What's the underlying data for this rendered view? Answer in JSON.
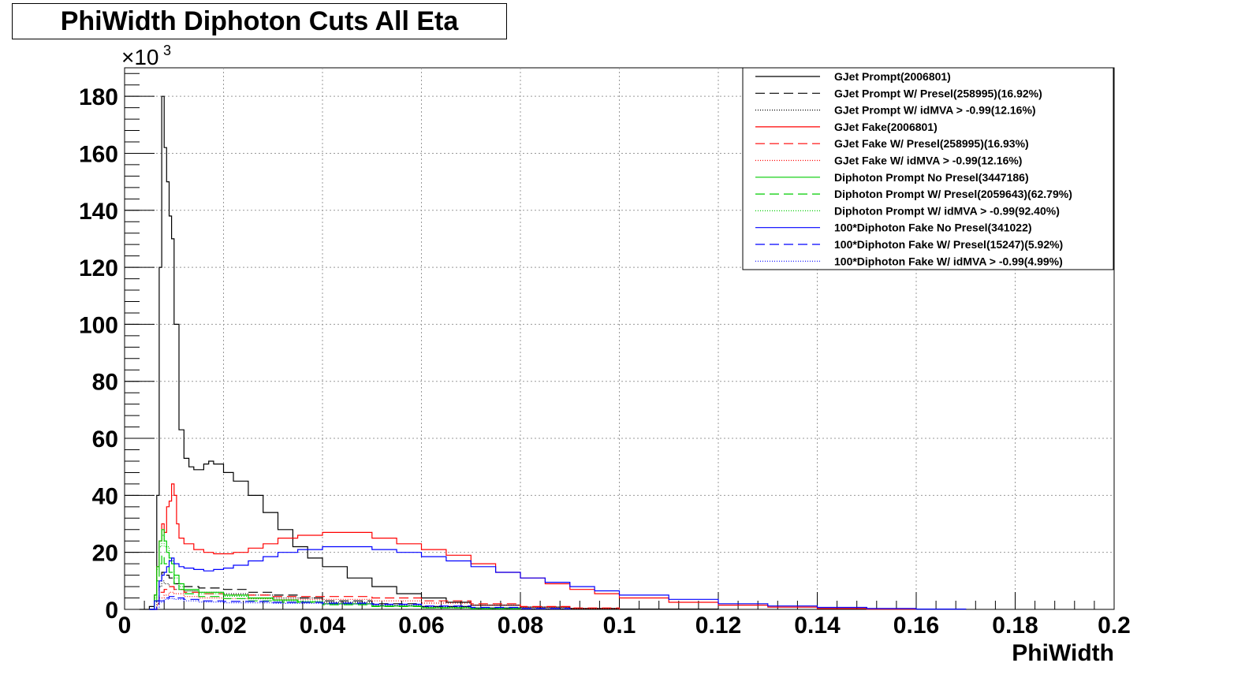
{
  "title": "PhiWidth Diphoton Cuts All Eta",
  "chart_data": {
    "type": "line",
    "subtype": "step-histogram",
    "xlabel": "PhiWidth",
    "ylabel": "",
    "y_scale_label": "×10",
    "y_scale_exponent": "3",
    "xlim": [
      0,
      0.2
    ],
    "ylim": [
      0,
      190
    ],
    "x_ticks": [
      "0",
      "0.02",
      "0.04",
      "0.06",
      "0.08",
      "0.1",
      "0.12",
      "0.14",
      "0.16",
      "0.18",
      "0.2"
    ],
    "y_ticks": [
      "0",
      "20",
      "40",
      "60",
      "80",
      "100",
      "120",
      "140",
      "160",
      "180"
    ],
    "grid": true,
    "legend_position": "top-right",
    "series": [
      {
        "name": "GJet Prompt(2006801)",
        "color": "#000000",
        "dash": "solid",
        "points": [
          [
            0.003,
            0
          ],
          [
            0.005,
            1
          ],
          [
            0.006,
            5
          ],
          [
            0.0065,
            40
          ],
          [
            0.007,
            120
          ],
          [
            0.0075,
            180
          ],
          [
            0.008,
            162
          ],
          [
            0.0085,
            150
          ],
          [
            0.009,
            138
          ],
          [
            0.0095,
            130
          ],
          [
            0.01,
            100
          ],
          [
            0.011,
            63
          ],
          [
            0.012,
            53
          ],
          [
            0.013,
            50
          ],
          [
            0.014,
            49
          ],
          [
            0.016,
            51
          ],
          [
            0.017,
            52
          ],
          [
            0.018,
            51
          ],
          [
            0.02,
            48
          ],
          [
            0.022,
            45
          ],
          [
            0.025,
            40
          ],
          [
            0.028,
            34
          ],
          [
            0.031,
            28
          ],
          [
            0.034,
            22
          ],
          [
            0.037,
            18
          ],
          [
            0.04,
            15
          ],
          [
            0.045,
            11
          ],
          [
            0.05,
            8
          ],
          [
            0.055,
            5.5
          ],
          [
            0.06,
            4
          ],
          [
            0.065,
            2.5
          ],
          [
            0.07,
            1.5
          ],
          [
            0.08,
            0.8
          ],
          [
            0.09,
            0.3
          ],
          [
            0.1,
            0.1
          ],
          [
            0.12,
            0
          ]
        ]
      },
      {
        "name": "GJet Prompt W/ Presel(258995)(16.92%)",
        "color": "#000000",
        "dash": "dashed",
        "points": [
          [
            0.005,
            0
          ],
          [
            0.0065,
            3
          ],
          [
            0.007,
            10
          ],
          [
            0.0075,
            13
          ],
          [
            0.008,
            12
          ],
          [
            0.009,
            11
          ],
          [
            0.01,
            9
          ],
          [
            0.012,
            8
          ],
          [
            0.015,
            7.5
          ],
          [
            0.02,
            7
          ],
          [
            0.025,
            6
          ],
          [
            0.03,
            5
          ],
          [
            0.035,
            4
          ],
          [
            0.04,
            3
          ],
          [
            0.05,
            2
          ],
          [
            0.06,
            1
          ],
          [
            0.07,
            0.5
          ],
          [
            0.08,
            0.2
          ],
          [
            0.09,
            0
          ]
        ]
      },
      {
        "name": "GJet Prompt W/ idMVA > -0.99(12.16%)",
        "color": "#000000",
        "dash": "dotted",
        "points": [
          [
            0.005,
            0
          ],
          [
            0.0065,
            2
          ],
          [
            0.007,
            8
          ],
          [
            0.0075,
            10
          ],
          [
            0.008,
            9
          ],
          [
            0.009,
            8
          ],
          [
            0.01,
            7
          ],
          [
            0.012,
            6.5
          ],
          [
            0.015,
            6
          ],
          [
            0.02,
            5.5
          ],
          [
            0.025,
            5
          ],
          [
            0.03,
            4
          ],
          [
            0.04,
            2.5
          ],
          [
            0.05,
            1.5
          ],
          [
            0.06,
            0.8
          ],
          [
            0.07,
            0.3
          ],
          [
            0.08,
            0
          ]
        ]
      },
      {
        "name": "GJet Fake(2006801)",
        "color": "#ff0000",
        "dash": "solid",
        "points": [
          [
            0.005,
            0
          ],
          [
            0.006,
            5
          ],
          [
            0.0065,
            15
          ],
          [
            0.007,
            24
          ],
          [
            0.0075,
            30
          ],
          [
            0.008,
            27
          ],
          [
            0.0085,
            36
          ],
          [
            0.009,
            38
          ],
          [
            0.0095,
            44
          ],
          [
            0.01,
            40
          ],
          [
            0.0105,
            30
          ],
          [
            0.011,
            25
          ],
          [
            0.012,
            23
          ],
          [
            0.014,
            21
          ],
          [
            0.016,
            20
          ],
          [
            0.018,
            19.5
          ],
          [
            0.02,
            19.5
          ],
          [
            0.022,
            20
          ],
          [
            0.025,
            21.5
          ],
          [
            0.028,
            23
          ],
          [
            0.031,
            25
          ],
          [
            0.035,
            26
          ],
          [
            0.04,
            27
          ],
          [
            0.045,
            27
          ],
          [
            0.05,
            25
          ],
          [
            0.055,
            23
          ],
          [
            0.06,
            21
          ],
          [
            0.065,
            19
          ],
          [
            0.07,
            16
          ],
          [
            0.075,
            13
          ],
          [
            0.08,
            11
          ],
          [
            0.085,
            9
          ],
          [
            0.09,
            7
          ],
          [
            0.095,
            5.5
          ],
          [
            0.1,
            4
          ],
          [
            0.11,
            2.5
          ],
          [
            0.12,
            1.5
          ],
          [
            0.13,
            0.8
          ],
          [
            0.14,
            0.3
          ],
          [
            0.15,
            0.1
          ],
          [
            0.16,
            0
          ]
        ]
      },
      {
        "name": "GJet Fake W/ Presel(258995)(16.93%)",
        "color": "#ff0000",
        "dash": "dashed",
        "points": [
          [
            0.005,
            0
          ],
          [
            0.0065,
            2
          ],
          [
            0.007,
            6
          ],
          [
            0.008,
            7
          ],
          [
            0.009,
            8
          ],
          [
            0.01,
            7
          ],
          [
            0.012,
            6
          ],
          [
            0.015,
            5.5
          ],
          [
            0.02,
            5
          ],
          [
            0.03,
            4.5
          ],
          [
            0.04,
            4.5
          ],
          [
            0.05,
            4
          ],
          [
            0.06,
            3
          ],
          [
            0.07,
            2
          ],
          [
            0.08,
            1
          ],
          [
            0.09,
            0.5
          ],
          [
            0.1,
            0
          ]
        ]
      },
      {
        "name": "GJet Fake W/ idMVA > -0.99(12.16%)",
        "color": "#ff0000",
        "dash": "dotted",
        "points": [
          [
            0.005,
            0
          ],
          [
            0.0065,
            1.5
          ],
          [
            0.007,
            4
          ],
          [
            0.008,
            5
          ],
          [
            0.009,
            6
          ],
          [
            0.01,
            5.5
          ],
          [
            0.012,
            4.5
          ],
          [
            0.015,
            4
          ],
          [
            0.02,
            3.8
          ],
          [
            0.03,
            3.5
          ],
          [
            0.04,
            3.5
          ],
          [
            0.05,
            3
          ],
          [
            0.06,
            2.2
          ],
          [
            0.07,
            1.5
          ],
          [
            0.08,
            0.8
          ],
          [
            0.09,
            0.3
          ],
          [
            0.1,
            0
          ]
        ]
      },
      {
        "name": "Diphoton Prompt No Presel(3447186)",
        "color": "#00cc00",
        "dash": "solid",
        "points": [
          [
            0.005,
            0
          ],
          [
            0.006,
            5
          ],
          [
            0.0065,
            15
          ],
          [
            0.007,
            24
          ],
          [
            0.0075,
            28
          ],
          [
            0.008,
            24
          ],
          [
            0.0085,
            20
          ],
          [
            0.009,
            18
          ],
          [
            0.0095,
            16
          ],
          [
            0.01,
            12
          ],
          [
            0.011,
            9
          ],
          [
            0.012,
            7
          ],
          [
            0.015,
            6
          ],
          [
            0.02,
            5
          ],
          [
            0.025,
            4
          ],
          [
            0.03,
            3.3
          ],
          [
            0.035,
            2.6
          ],
          [
            0.04,
            2
          ],
          [
            0.05,
            1.2
          ],
          [
            0.06,
            0.6
          ],
          [
            0.07,
            0.3
          ],
          [
            0.08,
            0
          ]
        ]
      },
      {
        "name": "Diphoton Prompt W/ Presel(2059643)(62.79%)",
        "color": "#00cc00",
        "dash": "dashed",
        "points": [
          [
            0.005,
            0
          ],
          [
            0.006,
            3
          ],
          [
            0.0065,
            10
          ],
          [
            0.007,
            16
          ],
          [
            0.0075,
            19
          ],
          [
            0.008,
            16
          ],
          [
            0.009,
            13
          ],
          [
            0.01,
            9
          ],
          [
            0.011,
            7
          ],
          [
            0.012,
            5.5
          ],
          [
            0.015,
            4.5
          ],
          [
            0.02,
            3.8
          ],
          [
            0.025,
            3
          ],
          [
            0.03,
            2.5
          ],
          [
            0.04,
            1.6
          ],
          [
            0.05,
            1
          ],
          [
            0.06,
            0.5
          ],
          [
            0.07,
            0.2
          ],
          [
            0.08,
            0
          ]
        ]
      },
      {
        "name": "Diphoton Prompt W/ idMVA > -0.99(92.40%)",
        "color": "#00cc00",
        "dash": "dotted",
        "points": [
          [
            0.005,
            0
          ],
          [
            0.006,
            4
          ],
          [
            0.0065,
            14
          ],
          [
            0.007,
            22
          ],
          [
            0.0075,
            26
          ],
          [
            0.008,
            22
          ],
          [
            0.009,
            17
          ],
          [
            0.01,
            11
          ],
          [
            0.011,
            8
          ],
          [
            0.012,
            6.5
          ],
          [
            0.015,
            5.5
          ],
          [
            0.02,
            4.6
          ],
          [
            0.025,
            3.7
          ],
          [
            0.03,
            3
          ],
          [
            0.04,
            1.9
          ],
          [
            0.05,
            1.1
          ],
          [
            0.06,
            0.5
          ],
          [
            0.07,
            0.2
          ],
          [
            0.08,
            0
          ]
        ]
      },
      {
        "name": "100*Diphoton Fake No Presel(341022)",
        "color": "#0000ff",
        "dash": "solid",
        "points": [
          [
            0.005,
            0
          ],
          [
            0.006,
            3
          ],
          [
            0.007,
            10
          ],
          [
            0.0075,
            12
          ],
          [
            0.008,
            13
          ],
          [
            0.0085,
            15
          ],
          [
            0.009,
            17
          ],
          [
            0.0095,
            18
          ],
          [
            0.01,
            16
          ],
          [
            0.011,
            15
          ],
          [
            0.012,
            14.5
          ],
          [
            0.014,
            14
          ],
          [
            0.016,
            13.5
          ],
          [
            0.018,
            14
          ],
          [
            0.02,
            14.5
          ],
          [
            0.022,
            15.5
          ],
          [
            0.025,
            17
          ],
          [
            0.028,
            18.5
          ],
          [
            0.031,
            20
          ],
          [
            0.035,
            21
          ],
          [
            0.04,
            22
          ],
          [
            0.045,
            22
          ],
          [
            0.05,
            21
          ],
          [
            0.055,
            20
          ],
          [
            0.06,
            18.5
          ],
          [
            0.065,
            17
          ],
          [
            0.07,
            15
          ],
          [
            0.075,
            13
          ],
          [
            0.08,
            11
          ],
          [
            0.085,
            9.5
          ],
          [
            0.09,
            8
          ],
          [
            0.095,
            6.5
          ],
          [
            0.1,
            5
          ],
          [
            0.11,
            3.5
          ],
          [
            0.12,
            2
          ],
          [
            0.13,
            1.2
          ],
          [
            0.14,
            0.7
          ],
          [
            0.15,
            0.3
          ],
          [
            0.16,
            0.1
          ],
          [
            0.17,
            0
          ]
        ]
      },
      {
        "name": "100*Diphoton Fake W/ Presel(15247)(5.92%)",
        "color": "#0000ff",
        "dash": "dashed",
        "points": [
          [
            0.005,
            0
          ],
          [
            0.0065,
            1
          ],
          [
            0.007,
            3
          ],
          [
            0.008,
            4
          ],
          [
            0.009,
            4.5
          ],
          [
            0.01,
            4
          ],
          [
            0.012,
            3.5
          ],
          [
            0.015,
            3
          ],
          [
            0.02,
            2.8
          ],
          [
            0.03,
            2.5
          ],
          [
            0.04,
            2.2
          ],
          [
            0.05,
            1.8
          ],
          [
            0.06,
            1.2
          ],
          [
            0.07,
            0.7
          ],
          [
            0.08,
            0.3
          ],
          [
            0.09,
            0
          ]
        ]
      },
      {
        "name": "100*Diphoton Fake W/ idMVA > -0.99(4.99%)",
        "color": "#0000ff",
        "dash": "dotted",
        "points": [
          [
            0.005,
            0
          ],
          [
            0.0065,
            0.8
          ],
          [
            0.007,
            2.5
          ],
          [
            0.008,
            3.5
          ],
          [
            0.009,
            3.8
          ],
          [
            0.01,
            3.5
          ],
          [
            0.012,
            3
          ],
          [
            0.015,
            2.6
          ],
          [
            0.02,
            2.3
          ],
          [
            0.03,
            2.1
          ],
          [
            0.04,
            1.9
          ],
          [
            0.05,
            1.5
          ],
          [
            0.06,
            1
          ],
          [
            0.07,
            0.5
          ],
          [
            0.08,
            0.2
          ],
          [
            0.09,
            0
          ]
        ]
      }
    ]
  }
}
